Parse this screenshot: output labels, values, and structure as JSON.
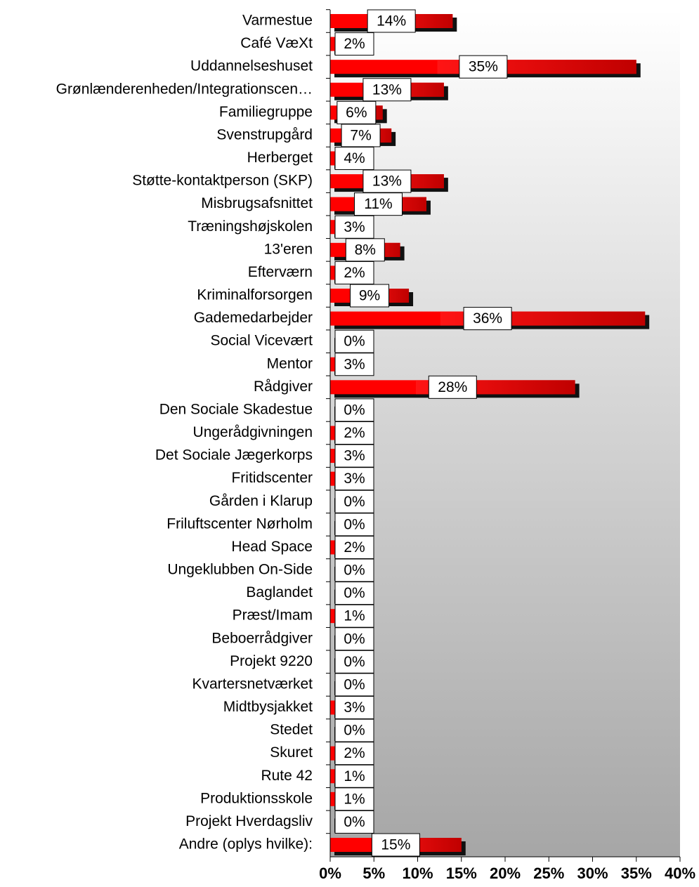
{
  "chart_data": {
    "type": "bar",
    "orientation": "horizontal",
    "categories": [
      "Varmestue",
      "Café VæXt",
      "Uddannelseshuset",
      "Grønlænderenheden/Integrationscen…",
      "Familiegruppe",
      "Svenstrupgård",
      "Herberget",
      "Støtte-kontaktperson (SKP)",
      "Misbrugsafsnittet",
      "Træningshøjskolen",
      "13'eren",
      "Efterværn",
      "Kriminalforsorgen",
      "Gademedarbejder",
      "Social Vicevært",
      "Mentor",
      "Rådgiver",
      "Den Sociale Skadestue",
      "Ungerådgivningen",
      "Det Sociale Jægerkorps",
      "Fritidscenter",
      "Gården i Klarup",
      "Friluftscenter Nørholm",
      "Head Space",
      "Ungeklubben On-Side",
      "Baglandet",
      "Præst/Imam",
      "Beboerrådgiver",
      "Projekt 9220",
      "Kvartersnetværket",
      "Midtbysjakket",
      "Stedet",
      "Skuret",
      "Rute 42",
      "Produktionsskole",
      "Projekt Hverdagsliv",
      "Andre (oplys hvilke):"
    ],
    "values": [
      14,
      2,
      35,
      13,
      6,
      7,
      4,
      13,
      11,
      3,
      8,
      2,
      9,
      36,
      0,
      3,
      28,
      0,
      2,
      3,
      3,
      0,
      0,
      2,
      0,
      0,
      1,
      0,
      0,
      0,
      3,
      0,
      2,
      1,
      1,
      0,
      15
    ],
    "value_labels": [
      "14%",
      "2%",
      "35%",
      "13%",
      "6%",
      "7%",
      "4%",
      "13%",
      "11%",
      "3%",
      "8%",
      "2%",
      "9%",
      "36%",
      "0%",
      "3%",
      "28%",
      "0%",
      "2%",
      "3%",
      "3%",
      "0%",
      "0%",
      "2%",
      "0%",
      "0%",
      "1%",
      "0%",
      "0%",
      "0%",
      "3%",
      "0%",
      "2%",
      "1%",
      "1%",
      "0%",
      "15%"
    ],
    "color": "#ff0000",
    "xlim": [
      0,
      40
    ],
    "xticks": [
      {
        "value": 0,
        "label": "0%"
      },
      {
        "value": 5,
        "label": "5%"
      },
      {
        "value": 10,
        "label": "10%"
      },
      {
        "value": 15,
        "label": "15%"
      },
      {
        "value": 20,
        "label": "20%"
      },
      {
        "value": 25,
        "label": "25%"
      },
      {
        "value": 30,
        "label": "30%"
      },
      {
        "value": 35,
        "label": "35%"
      },
      {
        "value": 40,
        "label": "40%"
      }
    ]
  }
}
